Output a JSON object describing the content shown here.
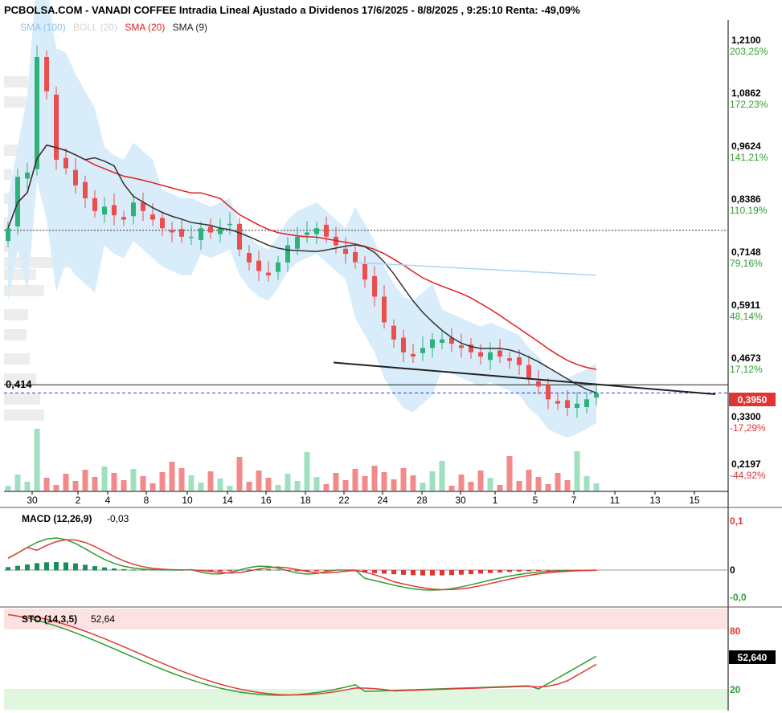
{
  "header": {
    "title": "PCBOLSA.COM - VANADI COFFEE Intradia Lineal Ajustado a Dividenos 17/6/2025 - 8/8/2025 , 9:25:10 Renta: -49,09%"
  },
  "legend": [
    {
      "label": "SMA (100)",
      "color": "#8cc6ec"
    },
    {
      "label": "BOLL (20)",
      "color": "#d4d4d4"
    },
    {
      "label": "SMA (20)",
      "color": "#e02020"
    },
    {
      "label": "SMA (9)",
      "color": "#222222"
    }
  ],
  "colors": {
    "up": "#2fb27a",
    "down": "#ec4d4d",
    "boll_fill": "#d8ecfa",
    "sma100": "#a9d6f2",
    "sma20": "#e02020",
    "sma9": "#333333",
    "macd": "#2f9e2f",
    "signal": "#e23b3b",
    "macd_hist_up": "#1e8c5a",
    "macd_hist_down": "#e03535",
    "price_badge": "#e03535",
    "sto_badge": "#000000"
  },
  "main": {
    "price_levels": [
      {
        "price": "1,2100",
        "pct": "203,25%",
        "v": 1.21
      },
      {
        "price": "1,0862",
        "pct": "172,23%",
        "v": 1.0862
      },
      {
        "price": "0,9624",
        "pct": "141,21%",
        "v": 0.9624
      },
      {
        "price": "0,8386",
        "pct": "110,19%",
        "v": 0.8386
      },
      {
        "price": "0,7148",
        "pct": "79,16%",
        "v": 0.7148
      },
      {
        "price": "0,5911",
        "pct": "48,14%",
        "v": 0.5911
      },
      {
        "price": "0,4673",
        "pct": "17,12%",
        "v": 0.4673
      },
      {
        "price": "0,3300",
        "pct": "-17,29%",
        "v": 0.33
      },
      {
        "price": "0,2197",
        "pct": "-44,92%",
        "v": 0.2197
      }
    ],
    "last_price": "0,3950",
    "last_price_value": 0.395,
    "resistance_label": "0,414",
    "resistance_value": 0.414,
    "reference_level": 0.775,
    "x_labels": [
      "30",
      "2",
      "4",
      "8",
      "10",
      "14",
      "16",
      "18",
      "22",
      "24",
      "28",
      "30",
      "1",
      "5",
      "7",
      "11",
      "13",
      "15"
    ]
  },
  "macd": {
    "label": "MACD (12,26,9)",
    "value": "-0,03",
    "axis": [
      "0,1",
      "0",
      "-0,0"
    ]
  },
  "sto": {
    "label": "STO (14,3,5)",
    "value": "52,64",
    "badge": "52,640",
    "axis": [
      "80",
      "20"
    ]
  },
  "chart_data": {
    "type": "candlestick",
    "x": [
      "30",
      "2",
      "4",
      "8",
      "10",
      "14",
      "16",
      "18",
      "22",
      "24",
      "28",
      "30",
      "1",
      "5",
      "7",
      "11",
      "13",
      "15"
    ],
    "candles_close": [
      0.78,
      0.9,
      0.91,
      1.18,
      1.1,
      0.94,
      0.92,
      0.88,
      0.85,
      0.82,
      0.83,
      0.81,
      0.8,
      0.84,
      0.82,
      0.8,
      0.78,
      0.77,
      0.76,
      0.76,
      0.78,
      0.77,
      0.78,
      0.79,
      0.73,
      0.7,
      0.68,
      0.67,
      0.7,
      0.74,
      0.76,
      0.77,
      0.78,
      0.76,
      0.74,
      0.72,
      0.7,
      0.66,
      0.62,
      0.56,
      0.52,
      0.49,
      0.48,
      0.5,
      0.52,
      0.52,
      0.51,
      0.5,
      0.49,
      0.48,
      0.49,
      0.48,
      0.47,
      0.46,
      0.43,
      0.41,
      0.38,
      0.37,
      0.36,
      0.37,
      0.38,
      0.395
    ],
    "sma100_end": 0.67,
    "trendlines": [
      [
        0.466,
        0.392
      ]
    ],
    "volume": "bars",
    "ylim": [
      0.2,
      1.26
    ]
  }
}
